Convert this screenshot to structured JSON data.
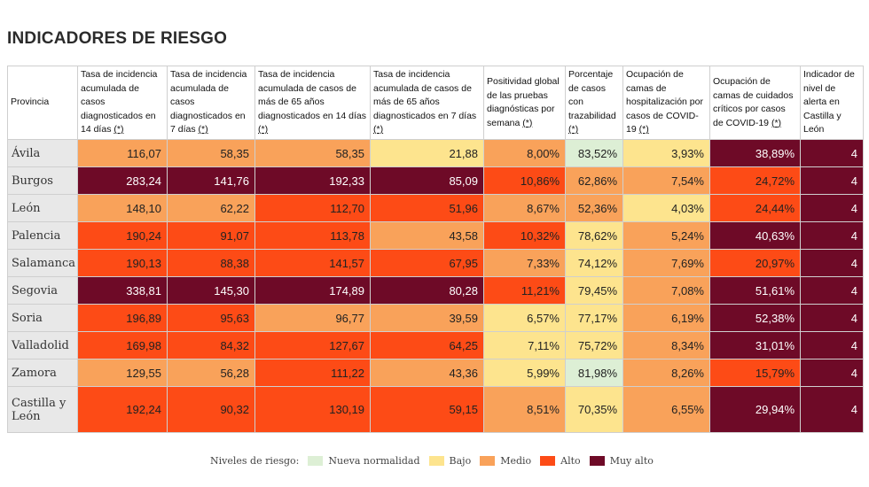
{
  "title": "INDICADORES DE RIESGO",
  "table": {
    "headers": [
      {
        "text": "Provincia",
        "ast": ""
      },
      {
        "text": "Tasa de incidencia acumulada de casos diagnosticados en 14 días ",
        "ast": "(*)"
      },
      {
        "text": "Tasa de incidencia acumulada de casos diagnosticados en 7 días ",
        "ast": "(*)"
      },
      {
        "text": "Tasa de incidencia acumulada de casos de más de 65 años diagnosticados en 14 días ",
        "ast": "(*)"
      },
      {
        "text": "Tasa de incidencia acumulada de casos de más de 65 años diagnosticados en 7 días ",
        "ast": "(*)"
      },
      {
        "text": "Positividad global de las pruebas diagnósticas por semana ",
        "ast": "(*)"
      },
      {
        "text": "Porcentaje de casos con trazabilidad ",
        "ast": "(*)"
      },
      {
        "text": "Ocupación de camas de hospitalización por casos de COVID-19 ",
        "ast": "(*)"
      },
      {
        "text": "Ocupación de camas de cuidados críticos por casos de COVID-19 ",
        "ast": "(*)"
      },
      {
        "text": "Indicador de nivel de alerta en Castilla y León",
        "ast": ""
      }
    ],
    "rows": [
      {
        "province": "Ávila",
        "cells": [
          {
            "v": "116,07",
            "lv": "medio"
          },
          {
            "v": "58,35",
            "lv": "medio"
          },
          {
            "v": "58,35",
            "lv": "medio"
          },
          {
            "v": "21,88",
            "lv": "bajo"
          },
          {
            "v": "8,00%",
            "lv": "medio"
          },
          {
            "v": "83,52%",
            "lv": "nueva"
          },
          {
            "v": "3,93%",
            "lv": "bajo"
          },
          {
            "v": "38,89%",
            "lv": "muyalto"
          },
          {
            "v": "4",
            "lv": "muyalto"
          }
        ]
      },
      {
        "province": "Burgos",
        "cells": [
          {
            "v": "283,24",
            "lv": "muyalto"
          },
          {
            "v": "141,76",
            "lv": "muyalto"
          },
          {
            "v": "192,33",
            "lv": "muyalto"
          },
          {
            "v": "85,09",
            "lv": "muyalto"
          },
          {
            "v": "10,86%",
            "lv": "alto"
          },
          {
            "v": "62,86%",
            "lv": "medio"
          },
          {
            "v": "7,54%",
            "lv": "medio"
          },
          {
            "v": "24,72%",
            "lv": "alto"
          },
          {
            "v": "4",
            "lv": "muyalto"
          }
        ]
      },
      {
        "province": "León",
        "cells": [
          {
            "v": "148,10",
            "lv": "medio"
          },
          {
            "v": "62,22",
            "lv": "medio"
          },
          {
            "v": "112,70",
            "lv": "alto"
          },
          {
            "v": "51,96",
            "lv": "alto"
          },
          {
            "v": "8,67%",
            "lv": "medio"
          },
          {
            "v": "52,36%",
            "lv": "medio"
          },
          {
            "v": "4,03%",
            "lv": "bajo"
          },
          {
            "v": "24,44%",
            "lv": "alto"
          },
          {
            "v": "4",
            "lv": "muyalto"
          }
        ]
      },
      {
        "province": "Palencia",
        "cells": [
          {
            "v": "190,24",
            "lv": "alto"
          },
          {
            "v": "91,07",
            "lv": "alto"
          },
          {
            "v": "113,78",
            "lv": "alto"
          },
          {
            "v": "43,58",
            "lv": "medio"
          },
          {
            "v": "10,32%",
            "lv": "alto"
          },
          {
            "v": "78,62%",
            "lv": "bajo"
          },
          {
            "v": "5,24%",
            "lv": "medio"
          },
          {
            "v": "40,63%",
            "lv": "muyalto"
          },
          {
            "v": "4",
            "lv": "muyalto"
          }
        ]
      },
      {
        "province": "Salamanca",
        "cells": [
          {
            "v": "190,13",
            "lv": "alto"
          },
          {
            "v": "88,38",
            "lv": "alto"
          },
          {
            "v": "141,57",
            "lv": "alto"
          },
          {
            "v": "67,95",
            "lv": "alto"
          },
          {
            "v": "7,33%",
            "lv": "medio"
          },
          {
            "v": "74,12%",
            "lv": "bajo"
          },
          {
            "v": "7,69%",
            "lv": "medio"
          },
          {
            "v": "20,97%",
            "lv": "alto"
          },
          {
            "v": "4",
            "lv": "muyalto"
          }
        ]
      },
      {
        "province": "Segovia",
        "cells": [
          {
            "v": "338,81",
            "lv": "muyalto"
          },
          {
            "v": "145,30",
            "lv": "muyalto"
          },
          {
            "v": "174,89",
            "lv": "muyalto"
          },
          {
            "v": "80,28",
            "lv": "muyalto"
          },
          {
            "v": "11,21%",
            "lv": "alto"
          },
          {
            "v": "79,45%",
            "lv": "bajo"
          },
          {
            "v": "7,08%",
            "lv": "medio"
          },
          {
            "v": "51,61%",
            "lv": "muyalto"
          },
          {
            "v": "4",
            "lv": "muyalto"
          }
        ]
      },
      {
        "province": "Soria",
        "cells": [
          {
            "v": "196,89",
            "lv": "alto"
          },
          {
            "v": "95,63",
            "lv": "alto"
          },
          {
            "v": "96,77",
            "lv": "medio"
          },
          {
            "v": "39,59",
            "lv": "medio"
          },
          {
            "v": "6,57%",
            "lv": "bajo"
          },
          {
            "v": "77,17%",
            "lv": "bajo"
          },
          {
            "v": "6,19%",
            "lv": "medio"
          },
          {
            "v": "52,38%",
            "lv": "muyalto"
          },
          {
            "v": "4",
            "lv": "muyalto"
          }
        ]
      },
      {
        "province": "Valladolid",
        "cells": [
          {
            "v": "169,98",
            "lv": "alto"
          },
          {
            "v": "84,32",
            "lv": "alto"
          },
          {
            "v": "127,67",
            "lv": "alto"
          },
          {
            "v": "64,25",
            "lv": "alto"
          },
          {
            "v": "7,11%",
            "lv": "bajo"
          },
          {
            "v": "75,72%",
            "lv": "bajo"
          },
          {
            "v": "8,34%",
            "lv": "medio"
          },
          {
            "v": "31,01%",
            "lv": "muyalto"
          },
          {
            "v": "4",
            "lv": "muyalto"
          }
        ]
      },
      {
        "province": "Zamora",
        "cells": [
          {
            "v": "129,55",
            "lv": "medio"
          },
          {
            "v": "56,28",
            "lv": "medio"
          },
          {
            "v": "111,22",
            "lv": "alto"
          },
          {
            "v": "43,36",
            "lv": "medio"
          },
          {
            "v": "5,99%",
            "lv": "bajo"
          },
          {
            "v": "81,98%",
            "lv": "nueva"
          },
          {
            "v": "8,26%",
            "lv": "medio"
          },
          {
            "v": "15,79%",
            "lv": "alto"
          },
          {
            "v": "4",
            "lv": "muyalto"
          }
        ]
      },
      {
        "province": "Castilla y León",
        "cells": [
          {
            "v": "192,24",
            "lv": "alto"
          },
          {
            "v": "90,32",
            "lv": "alto"
          },
          {
            "v": "130,19",
            "lv": "alto"
          },
          {
            "v": "59,15",
            "lv": "alto"
          },
          {
            "v": "8,51%",
            "lv": "medio"
          },
          {
            "v": "70,35%",
            "lv": "bajo"
          },
          {
            "v": "6,55%",
            "lv": "medio"
          },
          {
            "v": "29,94%",
            "lv": "muyalto"
          },
          {
            "v": "4",
            "lv": "muyalto"
          }
        ]
      }
    ]
  },
  "legend": {
    "label": "Niveles de riesgo:",
    "items": [
      {
        "key": "nueva",
        "label": "Nueva normalidad",
        "color": "#ddefd5"
      },
      {
        "key": "bajo",
        "label": "Bajo",
        "color": "#fde48e"
      },
      {
        "key": "medio",
        "label": "Medio",
        "color": "#f9a25a"
      },
      {
        "key": "alto",
        "label": "Alto",
        "color": "#fd4b16"
      },
      {
        "key": "muyalto",
        "label": "Muy alto",
        "color": "#6e0a27"
      }
    ]
  }
}
